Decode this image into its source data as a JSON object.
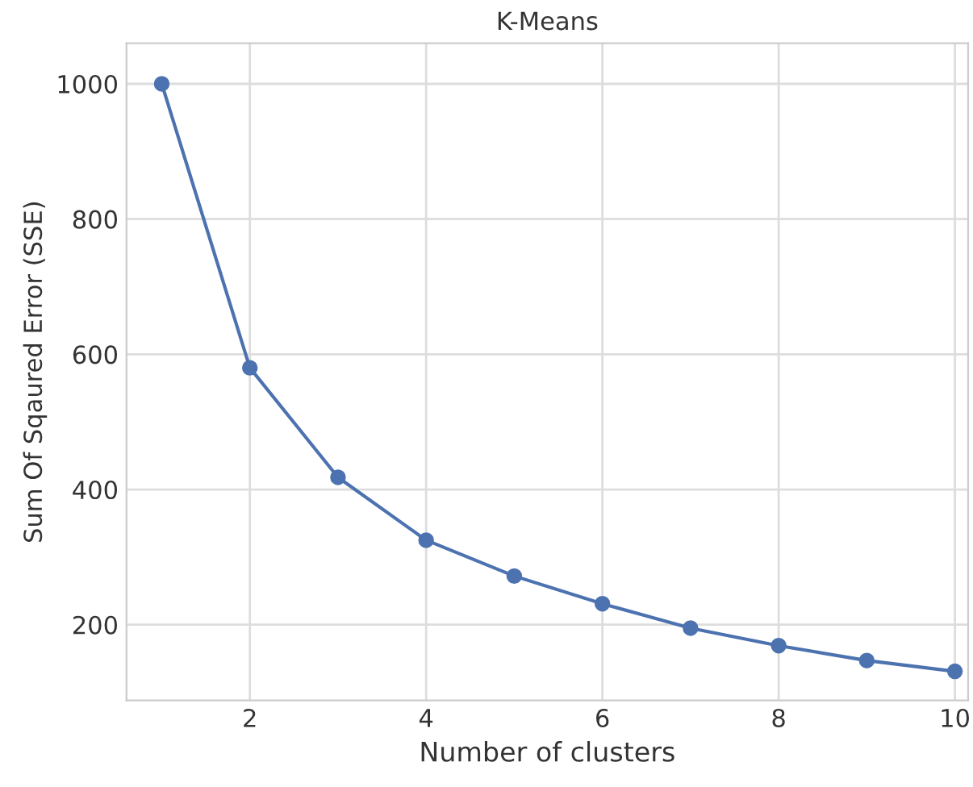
{
  "chart_data": {
    "type": "line",
    "title": "K-Means",
    "xlabel": "Number of clusters",
    "ylabel": "Sum Of Sqaured Error (SSE)",
    "x": [
      1,
      2,
      3,
      4,
      5,
      6,
      7,
      8,
      9,
      10
    ],
    "series": [
      {
        "color": "#4c72b0",
        "values": [
          1000,
          580,
          418,
          325,
          272,
          231,
          195,
          169,
          147,
          131
        ]
      }
    ],
    "xlim": [
      0.6,
      10.15
    ],
    "ylim": [
      88,
      1060
    ],
    "xticks": [
      2,
      4,
      6,
      8,
      10
    ],
    "yticks": [
      200,
      400,
      600,
      800,
      1000
    ],
    "grid": true,
    "marker": "circle",
    "line_style": "solid"
  }
}
